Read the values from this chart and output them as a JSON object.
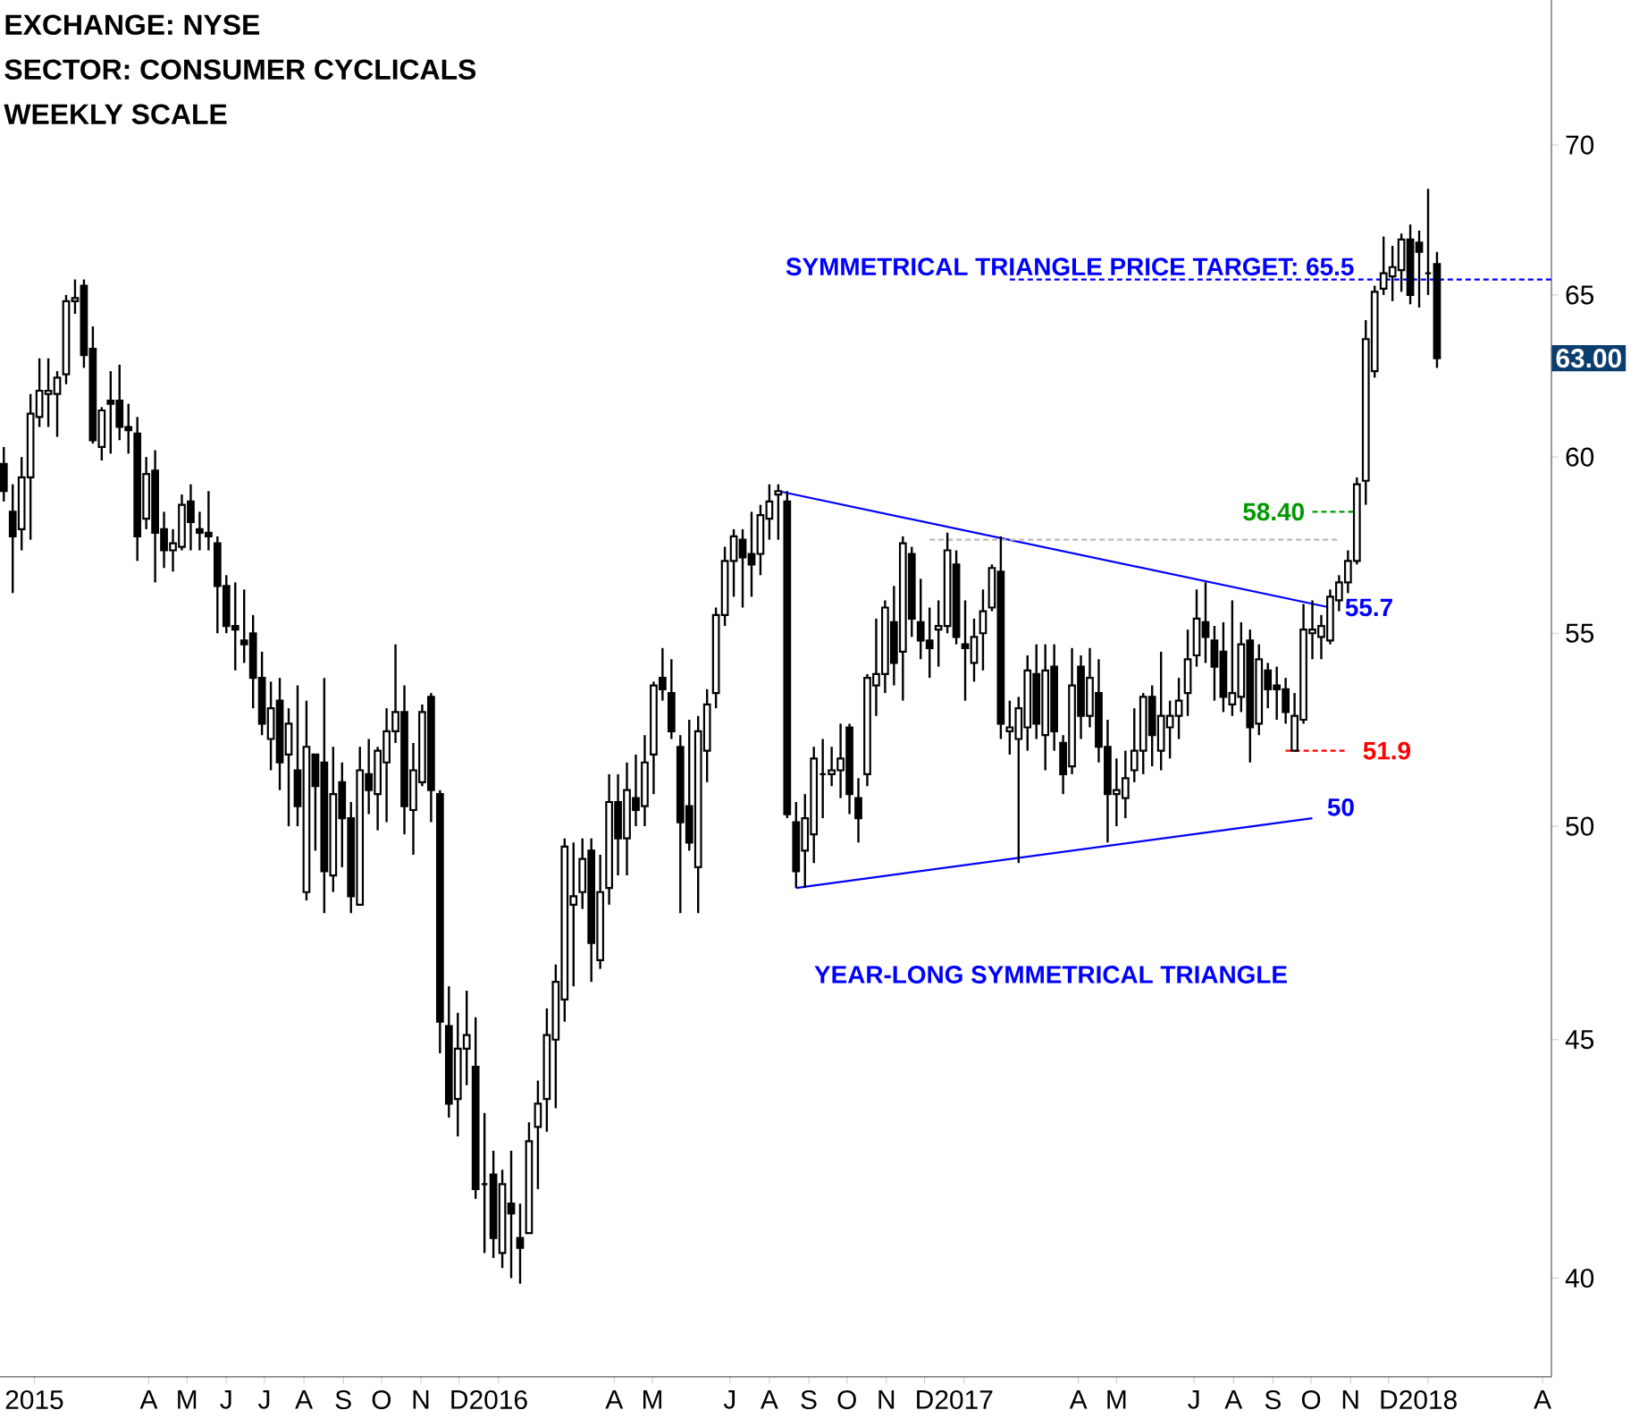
{
  "chart_data": {
    "type": "candlestick",
    "color": "#000000",
    "log": "y",
    "ylim": [
      38.1,
      75.2
    ],
    "yticks": [
      40,
      45,
      50,
      55,
      60,
      65,
      70
    ],
    "xlim": [
      "2014-12-05",
      "2018-04-08"
    ],
    "xticks": [
      {
        "value": "2015-01-01",
        "label": "2015"
      },
      {
        "value": "2015-04-01",
        "label": "A"
      },
      {
        "value": "2015-05-01",
        "label": "M"
      },
      {
        "value": "2015-06-01",
        "label": "J"
      },
      {
        "value": "2015-07-01",
        "label": "J"
      },
      {
        "value": "2015-08-01",
        "label": "A"
      },
      {
        "value": "2015-09-01",
        "label": "S"
      },
      {
        "value": "2015-10-01",
        "label": "O"
      },
      {
        "value": "2015-11-01",
        "label": "N"
      },
      {
        "value": "2015-12-01",
        "label": "D"
      },
      {
        "value": "2016-01-01",
        "label": "2016"
      },
      {
        "value": "2016-04-01",
        "label": "A"
      },
      {
        "value": "2016-05-01",
        "label": "M"
      },
      {
        "value": "2016-07-01",
        "label": "J"
      },
      {
        "value": "2016-08-01",
        "label": "A"
      },
      {
        "value": "2016-09-01",
        "label": "S"
      },
      {
        "value": "2016-10-01",
        "label": "O"
      },
      {
        "value": "2016-11-01",
        "label": "N"
      },
      {
        "value": "2016-12-01",
        "label": "D"
      },
      {
        "value": "2017-01-01",
        "label": "2017"
      },
      {
        "value": "2017-04-01",
        "label": "A"
      },
      {
        "value": "2017-05-01",
        "label": "M"
      },
      {
        "value": "2017-07-01",
        "label": "J"
      },
      {
        "value": "2017-08-01",
        "label": "A"
      },
      {
        "value": "2017-09-01",
        "label": "S"
      },
      {
        "value": "2017-10-01",
        "label": "O"
      },
      {
        "value": "2017-11-01",
        "label": "N"
      },
      {
        "value": "2017-12-01",
        "label": "D"
      },
      {
        "value": "2018-01-01",
        "label": "2018"
      },
      {
        "value": "2018-04-01",
        "label": "A"
      }
    ],
    "x": [
      "2014-12-08",
      "2014-12-15",
      "2014-12-22",
      "2014-12-29",
      "2015-01-05",
      "2015-01-12",
      "2015-01-19",
      "2015-01-26",
      "2015-02-02",
      "2015-02-09",
      "2015-02-16",
      "2015-02-23",
      "2015-03-02",
      "2015-03-09",
      "2015-03-16",
      "2015-03-23",
      "2015-03-30",
      "2015-04-06",
      "2015-04-13",
      "2015-04-20",
      "2015-04-27",
      "2015-05-04",
      "2015-05-11",
      "2015-05-18",
      "2015-05-25",
      "2015-06-01",
      "2015-06-08",
      "2015-06-15",
      "2015-06-22",
      "2015-06-29",
      "2015-07-06",
      "2015-07-13",
      "2015-07-20",
      "2015-07-27",
      "2015-08-03",
      "2015-08-10",
      "2015-08-17",
      "2015-08-24",
      "2015-08-31",
      "2015-09-07",
      "2015-09-14",
      "2015-09-21",
      "2015-09-28",
      "2015-10-05",
      "2015-10-12",
      "2015-10-19",
      "2015-10-26",
      "2015-11-02",
      "2015-11-09",
      "2015-11-16",
      "2015-11-23",
      "2015-11-30",
      "2015-12-07",
      "2015-12-14",
      "2015-12-21",
      "2015-12-28",
      "2016-01-04",
      "2016-01-11",
      "2016-01-18",
      "2016-01-25",
      "2016-02-01",
      "2016-02-08",
      "2016-02-15",
      "2016-02-22",
      "2016-02-29",
      "2016-03-07",
      "2016-03-14",
      "2016-03-21",
      "2016-03-28",
      "2016-04-04",
      "2016-04-11",
      "2016-04-18",
      "2016-04-25",
      "2016-05-02",
      "2016-05-09",
      "2016-05-16",
      "2016-05-23",
      "2016-05-30",
      "2016-06-06",
      "2016-06-13",
      "2016-06-20",
      "2016-06-27",
      "2016-07-04",
      "2016-07-11",
      "2016-07-18",
      "2016-07-25",
      "2016-08-01",
      "2016-08-08",
      "2016-08-15",
      "2016-08-22",
      "2016-08-29",
      "2016-09-05",
      "2016-09-12",
      "2016-09-19",
      "2016-09-26",
      "2016-10-03",
      "2016-10-10",
      "2016-10-17",
      "2016-10-24",
      "2016-10-31",
      "2016-11-07",
      "2016-11-14",
      "2016-11-21",
      "2016-11-28",
      "2016-12-05",
      "2016-12-12",
      "2016-12-19",
      "2016-12-26",
      "2017-01-02",
      "2017-01-09",
      "2017-01-16",
      "2017-01-23",
      "2017-01-30",
      "2017-02-06",
      "2017-02-13",
      "2017-02-20",
      "2017-02-27",
      "2017-03-06",
      "2017-03-13",
      "2017-03-20",
      "2017-03-27",
      "2017-04-03",
      "2017-04-10",
      "2017-04-17",
      "2017-04-24",
      "2017-05-01",
      "2017-05-08",
      "2017-05-15",
      "2017-05-22",
      "2017-05-29",
      "2017-06-05",
      "2017-06-12",
      "2017-06-19",
      "2017-06-26",
      "2017-07-03",
      "2017-07-10",
      "2017-07-17",
      "2017-07-24",
      "2017-07-31",
      "2017-08-07",
      "2017-08-14",
      "2017-08-21",
      "2017-08-28",
      "2017-09-04",
      "2017-09-11",
      "2017-09-18",
      "2017-09-25",
      "2017-10-02",
      "2017-10-09",
      "2017-10-16",
      "2017-10-23",
      "2017-10-30",
      "2017-11-06",
      "2017-11-13",
      "2017-11-20",
      "2017-11-27",
      "2017-12-04",
      "2017-12-11",
      "2017-12-18",
      "2017-12-25",
      "2018-01-01",
      "2018-01-08"
    ],
    "ohlc": [
      [
        59.8,
        60.3,
        58.7,
        59.0
      ],
      [
        58.4,
        59.2,
        56.1,
        57.7
      ],
      [
        57.9,
        60.0,
        57.3,
        59.4
      ],
      [
        59.4,
        61.9,
        57.6,
        61.3
      ],
      [
        61.2,
        63.0,
        60.9,
        62.0
      ],
      [
        61.9,
        63.0,
        60.9,
        62.0
      ],
      [
        61.9,
        62.6,
        60.6,
        62.4
      ],
      [
        62.5,
        65.0,
        62.2,
        64.8
      ],
      [
        64.8,
        65.5,
        64.4,
        64.9
      ],
      [
        65.3,
        65.5,
        62.7,
        63.1
      ],
      [
        63.3,
        64.0,
        60.4,
        60.5
      ],
      [
        60.3,
        61.5,
        59.9,
        61.4
      ],
      [
        61.7,
        62.6,
        60.1,
        61.6
      ],
      [
        61.7,
        62.8,
        60.5,
        60.9
      ],
      [
        60.9,
        61.6,
        60.1,
        60.8
      ],
      [
        60.7,
        61.2,
        57.0,
        57.7
      ],
      [
        58.2,
        60.0,
        57.9,
        59.5
      ],
      [
        59.6,
        60.2,
        56.4,
        57.8
      ],
      [
        57.9,
        58.4,
        56.8,
        57.3
      ],
      [
        57.3,
        57.9,
        56.7,
        57.5
      ],
      [
        57.4,
        58.9,
        57.3,
        58.6
      ],
      [
        58.7,
        59.2,
        57.3,
        58.1
      ],
      [
        57.9,
        58.4,
        57.3,
        57.8
      ],
      [
        57.8,
        59.0,
        57.3,
        57.7
      ],
      [
        57.5,
        57.7,
        55.0,
        56.3
      ],
      [
        56.3,
        56.6,
        55.0,
        55.2
      ],
      [
        55.2,
        56.4,
        54.0,
        55.1
      ],
      [
        54.8,
        56.2,
        54.2,
        54.7
      ],
      [
        55.0,
        55.5,
        53.0,
        53.8
      ],
      [
        53.8,
        54.5,
        52.3,
        52.6
      ],
      [
        52.2,
        53.7,
        51.4,
        53.0
      ],
      [
        53.2,
        53.8,
        50.9,
        51.6
      ],
      [
        51.8,
        53.0,
        50.0,
        52.6
      ],
      [
        51.4,
        53.6,
        50.0,
        50.5
      ],
      [
        48.4,
        53.2,
        48.2,
        52.0
      ],
      [
        51.8,
        51.8,
        49.4,
        51.0
      ],
      [
        51.6,
        53.8,
        47.9,
        48.9
      ],
      [
        48.8,
        52.0,
        48.4,
        50.8
      ],
      [
        51.1,
        51.6,
        49.0,
        50.2
      ],
      [
        50.2,
        50.6,
        47.9,
        48.3
      ],
      [
        48.1,
        52.0,
        48.1,
        51.4
      ],
      [
        51.3,
        52.2,
        50.3,
        50.9
      ],
      [
        50.8,
        52.0,
        49.9,
        51.9
      ],
      [
        51.6,
        53.0,
        50.1,
        52.4
      ],
      [
        52.4,
        54.7,
        52.1,
        52.9
      ],
      [
        52.9,
        53.6,
        49.8,
        50.5
      ],
      [
        50.4,
        52.1,
        49.3,
        51.4
      ],
      [
        51.1,
        53.1,
        51.0,
        52.9
      ],
      [
        53.3,
        53.4,
        50.1,
        50.9
      ],
      [
        50.8,
        50.9,
        44.7,
        45.4
      ],
      [
        45.3,
        46.2,
        43.3,
        43.6
      ],
      [
        43.7,
        45.6,
        42.9,
        44.8
      ],
      [
        44.8,
        46.1,
        44.0,
        45.1
      ],
      [
        44.4,
        45.5,
        41.6,
        41.8
      ],
      [
        41.9,
        43.4,
        40.5,
        41.9
      ],
      [
        42.1,
        42.6,
        40.4,
        40.8
      ],
      [
        40.5,
        42.2,
        40.2,
        41.9
      ],
      [
        41.5,
        42.6,
        40.0,
        41.3
      ],
      [
        40.8,
        41.5,
        39.9,
        40.6
      ],
      [
        40.9,
        43.2,
        40.9,
        42.8
      ],
      [
        43.1,
        44.1,
        41.8,
        43.6
      ],
      [
        43.7,
        45.7,
        43.0,
        45.1
      ],
      [
        45.0,
        46.7,
        43.5,
        46.3
      ],
      [
        45.9,
        49.7,
        45.4,
        49.5
      ],
      [
        48.1,
        49.6,
        46.2,
        48.3
      ],
      [
        48.4,
        49.7,
        48.0,
        49.2
      ],
      [
        49.4,
        49.7,
        46.3,
        47.2
      ],
      [
        46.8,
        49.3,
        46.6,
        48.4
      ],
      [
        48.5,
        51.3,
        48.1,
        50.6
      ],
      [
        50.6,
        51.3,
        48.8,
        49.7
      ],
      [
        49.7,
        51.6,
        48.8,
        50.9
      ],
      [
        50.7,
        51.8,
        50.0,
        50.4
      ],
      [
        50.5,
        52.3,
        50.0,
        51.6
      ],
      [
        51.8,
        53.7,
        50.8,
        53.6
      ],
      [
        53.8,
        54.6,
        53.2,
        53.5
      ],
      [
        53.4,
        54.3,
        52.2,
        52.4
      ],
      [
        52.0,
        52.3,
        47.9,
        50.1
      ],
      [
        50.5,
        52.7,
        49.4,
        49.6
      ],
      [
        49.0,
        52.8,
        47.9,
        52.4
      ],
      [
        51.9,
        53.5,
        51.1,
        53.1
      ],
      [
        53.4,
        55.7,
        53.0,
        55.5
      ],
      [
        55.5,
        57.4,
        55.2,
        57.0
      ],
      [
        57.0,
        57.9,
        56.0,
        57.7
      ],
      [
        57.6,
        57.9,
        55.7,
        57.1
      ],
      [
        57.2,
        58.4,
        56.0,
        56.9
      ],
      [
        57.2,
        58.6,
        56.6,
        58.3
      ],
      [
        58.2,
        59.2,
        57.6,
        58.7
      ],
      [
        58.9,
        59.2,
        57.6,
        59.0
      ],
      [
        58.7,
        59.0,
        50.2,
        50.3
      ],
      [
        50.1,
        50.6,
        48.5,
        48.9
      ],
      [
        49.4,
        50.8,
        48.5,
        50.2
      ],
      [
        49.8,
        52.0,
        49.1,
        51.7
      ],
      [
        51.3,
        52.2,
        50.2,
        51.3
      ],
      [
        51.3,
        52.0,
        51.0,
        51.4
      ],
      [
        51.4,
        52.6,
        50.7,
        51.7
      ],
      [
        52.5,
        52.6,
        50.3,
        50.8
      ],
      [
        50.7,
        51.2,
        49.6,
        50.2
      ],
      [
        51.3,
        53.9,
        51.0,
        53.8
      ],
      [
        53.6,
        55.4,
        52.8,
        53.9
      ],
      [
        53.9,
        55.9,
        53.4,
        55.7
      ],
      [
        55.3,
        56.3,
        53.6,
        54.2
      ],
      [
        54.5,
        57.7,
        53.2,
        57.5
      ],
      [
        57.2,
        57.4,
        54.9,
        55.4
      ],
      [
        55.3,
        56.5,
        54.3,
        54.8
      ],
      [
        54.8,
        55.7,
        53.8,
        54.6
      ],
      [
        55.1,
        55.9,
        54.1,
        55.2
      ],
      [
        55.2,
        57.8,
        55.0,
        57.3
      ],
      [
        56.9,
        57.3,
        54.7,
        54.9
      ],
      [
        54.7,
        55.9,
        53.2,
        54.6
      ],
      [
        54.2,
        55.4,
        53.7,
        54.9
      ],
      [
        55.0,
        56.2,
        54.0,
        55.6
      ],
      [
        55.7,
        56.9,
        55.6,
        56.8
      ],
      [
        56.7,
        57.7,
        52.2,
        52.6
      ],
      [
        52.4,
        53.2,
        51.8,
        52.5
      ],
      [
        52.2,
        53.3,
        49.1,
        53.0
      ],
      [
        52.5,
        54.4,
        51.9,
        54.0
      ],
      [
        53.9,
        54.7,
        52.2,
        52.6
      ],
      [
        52.3,
        54.7,
        51.4,
        54.0
      ],
      [
        54.1,
        54.7,
        51.9,
        52.4
      ],
      [
        52.1,
        52.3,
        50.8,
        51.3
      ],
      [
        51.5,
        54.6,
        51.3,
        53.6
      ],
      [
        54.1,
        54.4,
        52.2,
        52.8
      ],
      [
        52.8,
        54.6,
        52.5,
        53.8
      ],
      [
        53.4,
        54.3,
        51.6,
        52.0
      ],
      [
        52.0,
        52.7,
        49.6,
        50.8
      ],
      [
        50.8,
        51.7,
        50.0,
        50.9
      ],
      [
        50.7,
        51.9,
        50.2,
        51.2
      ],
      [
        51.4,
        53.0,
        51.1,
        51.9
      ],
      [
        51.9,
        53.4,
        51.3,
        53.3
      ],
      [
        53.3,
        53.6,
        51.5,
        52.3
      ],
      [
        51.9,
        54.5,
        51.4,
        52.8
      ],
      [
        52.5,
        53.2,
        51.7,
        52.8
      ],
      [
        52.8,
        53.8,
        52.2,
        53.2
      ],
      [
        53.4,
        55.1,
        52.8,
        54.3
      ],
      [
        54.4,
        56.2,
        54.1,
        55.4
      ],
      [
        55.3,
        56.4,
        54.2,
        54.9
      ],
      [
        54.8,
        55.2,
        53.2,
        54.1
      ],
      [
        54.5,
        55.3,
        52.9,
        53.3
      ],
      [
        53.1,
        55.9,
        52.8,
        53.4
      ],
      [
        53.3,
        55.3,
        52.9,
        54.7
      ],
      [
        54.8,
        55.1,
        51.6,
        52.5
      ],
      [
        52.6,
        54.7,
        52.3,
        54.3
      ],
      [
        54.0,
        54.2,
        53.0,
        53.5
      ],
      [
        53.6,
        54.1,
        52.7,
        53.5
      ],
      [
        53.5,
        53.8,
        52.6,
        52.9
      ],
      [
        51.9,
        53.4,
        51.9,
        52.8
      ],
      [
        52.7,
        55.8,
        52.6,
        55.1
      ],
      [
        55.0,
        55.9,
        54.3,
        55.1
      ],
      [
        54.9,
        55.5,
        54.3,
        55.2
      ],
      [
        54.8,
        56.2,
        54.7,
        56.0
      ],
      [
        55.9,
        56.6,
        55.6,
        56.4
      ],
      [
        56.4,
        57.3,
        56.1,
        57.0
      ],
      [
        57.0,
        59.4,
        56.9,
        59.2
      ],
      [
        59.3,
        64.2,
        58.6,
        63.6
      ],
      [
        62.6,
        65.3,
        62.4,
        65.1
      ],
      [
        65.2,
        66.9,
        65.0,
        65.7
      ],
      [
        65.6,
        66.6,
        64.8,
        65.9
      ],
      [
        65.8,
        67.0,
        65.1,
        66.8
      ],
      [
        66.8,
        67.3,
        64.7,
        65.0
      ],
      [
        66.7,
        67.1,
        64.6,
        66.4
      ],
      [
        65.7,
        68.5,
        65.0,
        65.7
      ],
      [
        66.0,
        66.4,
        62.7,
        63.0
      ]
    ],
    "series": [
      {
        "type": "line",
        "name": "55.7",
        "color": "#0000ff",
        "line_style": "solid",
        "x": [
          "2016-08-08",
          "2017-10-16"
        ],
        "values": [
          59.0,
          55.7
        ]
      },
      {
        "type": "line",
        "name": "50",
        "color": "#0000ff",
        "line_style": "solid",
        "x": [
          "2016-08-22",
          "2017-10-02"
        ],
        "values": [
          48.5,
          50.2
        ]
      },
      {
        "type": "line",
        "color": "#bbbbbb",
        "line_style": "dashed",
        "x": [
          "2016-12-05",
          "2017-10-23"
        ],
        "values": [
          57.6,
          57.6
        ]
      },
      {
        "type": "line",
        "name": "58.40",
        "color": "#009900",
        "line_style": "dashed",
        "x": [
          "2017-10-02",
          "2017-11-06"
        ],
        "values": [
          58.4,
          58.4
        ]
      },
      {
        "type": "line",
        "name": "51.9",
        "color": "#ff0000",
        "line_style": "dashed",
        "x": [
          "2017-09-11",
          "2017-10-30"
        ],
        "values": [
          51.9,
          51.9
        ]
      },
      {
        "type": "line",
        "name": "SYMMETRICAL TRIANGLE PRICE TARGET: 65.5",
        "color": "#0000ff",
        "line_style": "dashed",
        "x": [
          "2017-02-06",
          "2018-04-08"
        ],
        "values": [
          65.5,
          65.5
        ]
      }
    ],
    "annotations": [
      "EXCHANGE: NYSE",
      "SECTOR: CONSUMER CYCLICALS",
      "WEEKLY SCALE",
      "YEAR-LONG SYMMETRICAL TRIANGLE",
      {
        "text": "63.00",
        "y": 63.0
      }
    ]
  }
}
